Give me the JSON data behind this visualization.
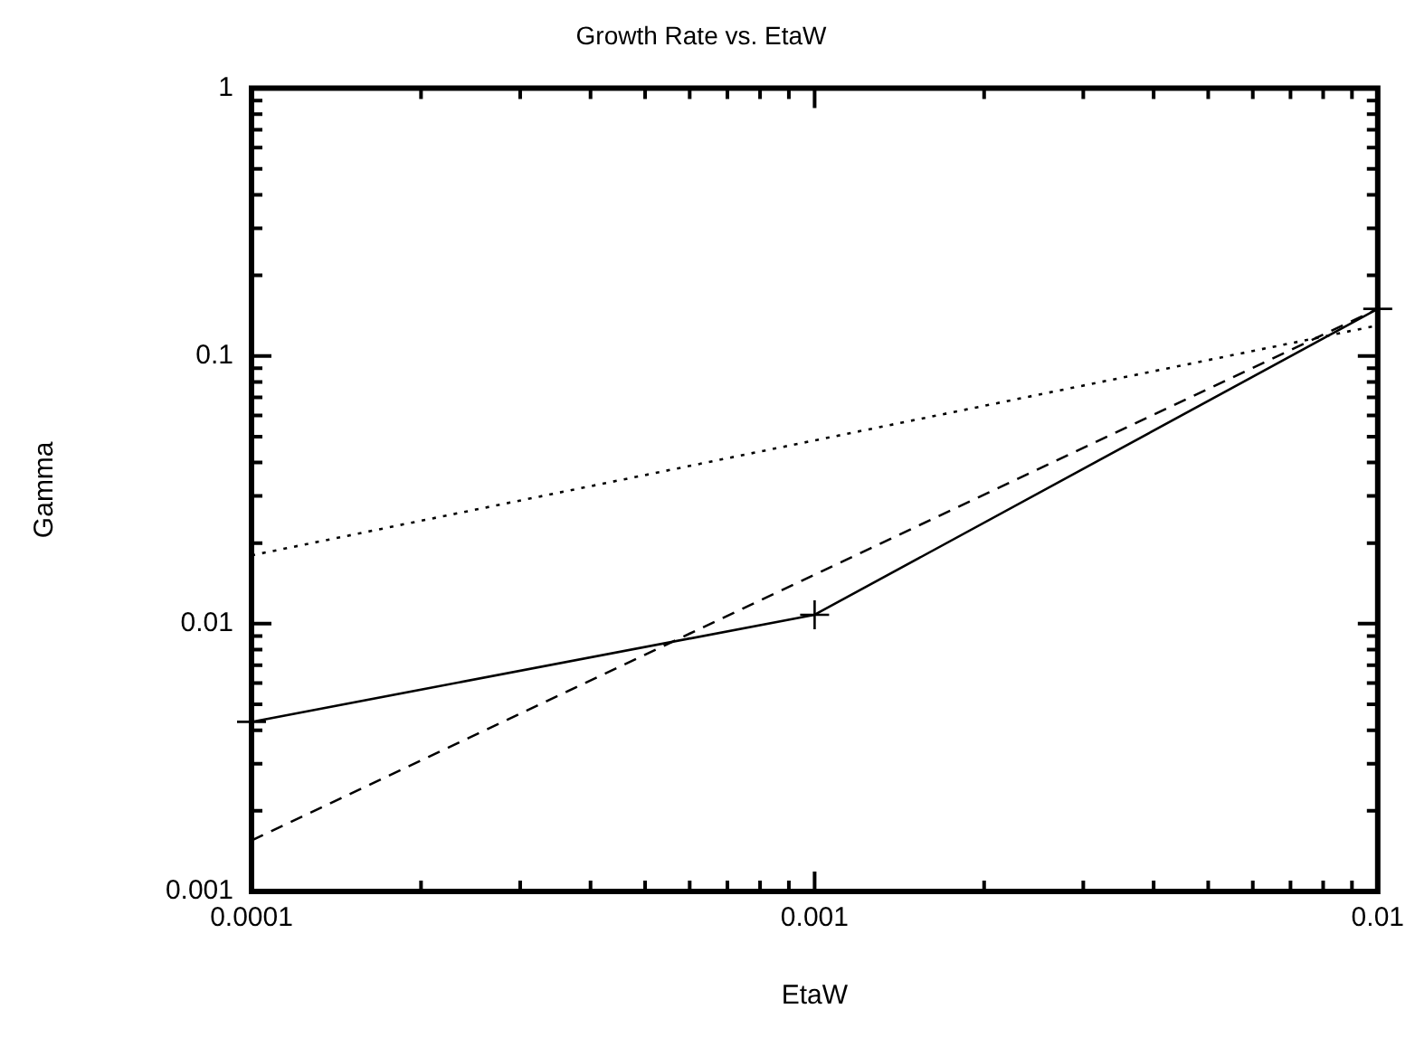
{
  "chart_data": {
    "type": "line",
    "title": "Growth Rate vs. EtaW",
    "xlabel": "EtaW",
    "ylabel": "Gamma",
    "log": "xy",
    "xlim": [
      0.0001,
      0.01
    ],
    "ylim": [
      0.001,
      1
    ],
    "xticks": [
      0.0001,
      {
        "value": 0.0002,
        "label": null
      },
      {
        "value": 0.0003,
        "label": null
      },
      {
        "value": 0.0004,
        "label": null
      },
      {
        "value": 0.0005,
        "label": null
      },
      {
        "value": 0.0006,
        "label": null
      },
      {
        "value": 0.0007,
        "label": null
      },
      {
        "value": 0.0008,
        "label": null
      },
      {
        "value": 0.0009,
        "label": null
      },
      0.001,
      {
        "value": 0.002,
        "label": null
      },
      {
        "value": 0.003,
        "label": null
      },
      {
        "value": 0.004,
        "label": null
      },
      {
        "value": 0.005,
        "label": null
      },
      {
        "value": 0.006,
        "label": null
      },
      {
        "value": 0.007,
        "label": null
      },
      {
        "value": 0.008,
        "label": null
      },
      {
        "value": 0.009,
        "label": null
      },
      0.01
    ],
    "yticks": [
      0.001,
      {
        "value": 0.002,
        "label": null
      },
      {
        "value": 0.003,
        "label": null
      },
      {
        "value": 0.004,
        "label": null
      },
      {
        "value": 0.005,
        "label": null
      },
      {
        "value": 0.006,
        "label": null
      },
      {
        "value": 0.007,
        "label": null
      },
      {
        "value": 0.008,
        "label": null
      },
      {
        "value": 0.009,
        "label": null
      },
      0.01,
      {
        "value": 0.02,
        "label": null
      },
      {
        "value": 0.03,
        "label": null
      },
      {
        "value": 0.04,
        "label": null
      },
      {
        "value": 0.05,
        "label": null
      },
      {
        "value": 0.06,
        "label": null
      },
      {
        "value": 0.07,
        "label": null
      },
      {
        "value": 0.08,
        "label": null
      },
      {
        "value": 0.09,
        "label": null
      },
      0.1,
      {
        "value": 0.2,
        "label": null
      },
      {
        "value": 0.3,
        "label": null
      },
      {
        "value": 0.4,
        "label": null
      },
      {
        "value": 0.5,
        "label": null
      },
      {
        "value": 0.6,
        "label": null
      },
      {
        "value": 0.7,
        "label": null
      },
      {
        "value": 0.8,
        "label": null
      },
      {
        "value": 0.9,
        "label": null
      },
      1
    ],
    "grid": false,
    "legend": false,
    "series": [
      {
        "color": "#000000",
        "x": [
          0.0001,
          0.001,
          0.01
        ],
        "values": [
          0.0043,
          0.0108,
          0.15
        ],
        "marker": "cross",
        "line_style": "solid"
      },
      {
        "color": "#000000",
        "x": [
          0.0001,
          0.01
        ],
        "values": [
          0.00155,
          0.15
        ],
        "marker": "none",
        "line_style": "dashed"
      },
      {
        "color": "#000000",
        "x": [
          0.0001,
          0.01
        ],
        "values": [
          0.018,
          0.13
        ],
        "marker": "none",
        "line_style": "dotted"
      }
    ]
  }
}
